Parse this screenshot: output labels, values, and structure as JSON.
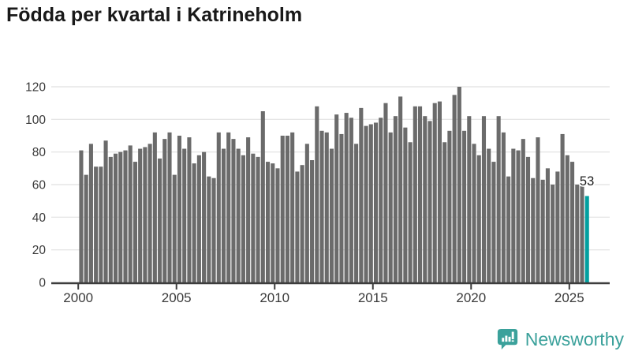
{
  "title": "Födda per kvartal i Katrineholm",
  "branding": {
    "name": "Newsworthy"
  },
  "colors": {
    "bar": "#6b6b6b",
    "highlight": "#02a0a0",
    "brand_teal": "#3ba19b",
    "grid": "#e6e6e6",
    "axis": "#3d3d3d",
    "tick_text": "#3a3a3a",
    "title_text": "#191919",
    "label_text": "#1d1d1d",
    "background": "#ffffff"
  },
  "chart_data": {
    "type": "bar",
    "title": "Födda per kvartal i Katrineholm",
    "frequency": "quarterly",
    "x_start": "2000-Q1",
    "x_end": "2025-Q4",
    "x_tick_labels": [
      "2000",
      "2005",
      "2010",
      "2015",
      "2020",
      "2025"
    ],
    "x_tick_quarter_indices": [
      0,
      20,
      40,
      60,
      80,
      100
    ],
    "y_ticks": [
      0,
      20,
      40,
      60,
      80,
      100,
      120
    ],
    "ylim": [
      0,
      125
    ],
    "grid": "horizontal",
    "legend": "none",
    "values": [
      81,
      66,
      85,
      71,
      71,
      87,
      77,
      79,
      80,
      81,
      84,
      74,
      82,
      83,
      85,
      92,
      76,
      88,
      92,
      66,
      90,
      82,
      89,
      73,
      78,
      80,
      65,
      64,
      92,
      82,
      92,
      88,
      82,
      78,
      89,
      79,
      77,
      105,
      74,
      73,
      70,
      90,
      90,
      92,
      68,
      72,
      85,
      75,
      108,
      93,
      92,
      82,
      103,
      91,
      104,
      101,
      85,
      107,
      96,
      97,
      98,
      101,
      110,
      92,
      102,
      114,
      95,
      86,
      108,
      108,
      102,
      99,
      110,
      111,
      86,
      93,
      115,
      120,
      93,
      102,
      85,
      78,
      102,
      82,
      74,
      102,
      92,
      65,
      82,
      81,
      88,
      77,
      64,
      89,
      63,
      70,
      60,
      68,
      91,
      78,
      74,
      60,
      59,
      53
    ],
    "highlight_index": 103,
    "highlight_value": 53,
    "highlight_label": "53"
  }
}
